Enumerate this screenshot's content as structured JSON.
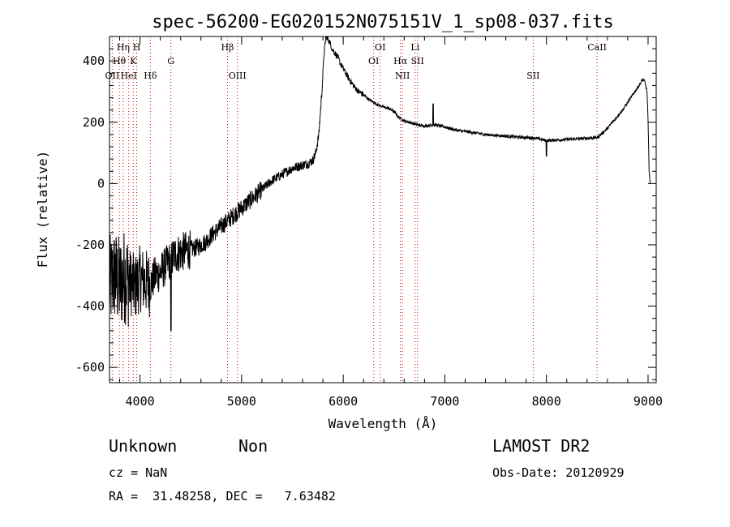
{
  "info": {
    "class": "Unknown",
    "subclass": "Non",
    "survey": "LAMOST DR2",
    "cz": "cz = NaN",
    "obs_date": "Obs-Date: 20120929",
    "radec": "RA =  31.48258, DEC =   7.63482"
  },
  "chart_data": {
    "type": "line",
    "title": "spec-56200-EG020152N075151V_1_sp08-037.fits",
    "xlabel": "Wavelength (Å)",
    "ylabel": "Flux (relative)",
    "xlim": [
      3700,
      9080
    ],
    "ylim": [
      -650,
      480
    ],
    "xticks": [
      4000,
      5000,
      6000,
      7000,
      8000,
      9000
    ],
    "yticks": [
      -600,
      -400,
      -200,
      0,
      200,
      400
    ],
    "grid": false,
    "line_color": "#000000",
    "marker_color": "#cc0000",
    "series": [
      {
        "x": [
          3700,
          3750,
          3800,
          3850,
          3900,
          3950,
          4000,
          4050,
          4100,
          4150,
          4200,
          4250,
          4300,
          4350,
          4400,
          4450,
          4500,
          4550,
          4600,
          4650,
          4700,
          4750,
          4800,
          4850,
          4900,
          4950,
          5000,
          5050,
          5100,
          5150,
          5200,
          5250,
          5300,
          5350,
          5400,
          5450,
          5500,
          5550,
          5600,
          5650,
          5700,
          5730,
          5760,
          5790,
          5810,
          5830,
          5850,
          5870,
          5890,
          5910,
          5930,
          5950,
          5975,
          6000,
          6050,
          6100,
          6150,
          6200,
          6250,
          6300,
          6350,
          6400,
          6450,
          6500,
          6550,
          6600,
          6650,
          6700,
          6750,
          6800,
          6850,
          6900,
          6950,
          7000,
          7100,
          7200,
          7300,
          7400,
          7500,
          7600,
          7700,
          7800,
          7900,
          8000,
          8100,
          8200,
          8300,
          8400,
          8500,
          8550,
          8600,
          8650,
          8700,
          8750,
          8800,
          8850,
          8900,
          8950,
          8970,
          8990,
          9000,
          9010,
          9020
        ],
        "y": [
          -330,
          -300,
          -330,
          -300,
          -320,
          -340,
          -310,
          -320,
          -330,
          -300,
          -290,
          -270,
          -250,
          -230,
          -225,
          -220,
          -215,
          -210,
          -200,
          -190,
          -170,
          -155,
          -140,
          -125,
          -110,
          -95,
          -80,
          -65,
          -50,
          -35,
          -20,
          -5,
          10,
          20,
          30,
          40,
          50,
          55,
          60,
          65,
          75,
          100,
          160,
          300,
          420,
          480,
          470,
          460,
          440,
          430,
          420,
          410,
          390,
          375,
          345,
          320,
          300,
          290,
          275,
          265,
          255,
          250,
          245,
          235,
          215,
          205,
          200,
          195,
          190,
          188,
          190,
          192,
          188,
          185,
          175,
          170,
          165,
          160,
          157,
          155,
          152,
          150,
          148,
          140,
          142,
          144,
          146,
          148,
          150,
          165,
          180,
          200,
          220,
          240,
          265,
          290,
          315,
          340,
          330,
          300,
          200,
          50,
          0
        ]
      }
    ],
    "lines": [
      {
        "name": "Hη",
        "x": 3835,
        "row": 1
      },
      {
        "name": "Hθ",
        "x": 3797,
        "row": 2
      },
      {
        "name": "OII",
        "x": 3727,
        "row": 3
      },
      {
        "name": "HeI",
        "x": 3889,
        "row": 3
      },
      {
        "name": "H",
        "x": 3968,
        "row": 1
      },
      {
        "name": "K",
        "x": 3934,
        "row": 2
      },
      {
        "name": "Hδ",
        "x": 4102,
        "row": 3
      },
      {
        "name": "G",
        "x": 4304,
        "row": 2
      },
      {
        "name": "Hβ",
        "x": 4861,
        "row": 1
      },
      {
        "name": "OIII",
        "x": 4959,
        "row": 3
      },
      {
        "name": "OI",
        "x": 6364,
        "row": 1
      },
      {
        "name": "OI",
        "x": 6300,
        "row": 2
      },
      {
        "name": "Hα",
        "x": 6563,
        "row": 2
      },
      {
        "name": "NII",
        "x": 6583,
        "row": 3
      },
      {
        "name": "Li",
        "x": 6708,
        "row": 1
      },
      {
        "name": "SII",
        "x": 6731,
        "row": 2
      },
      {
        "name": "SII",
        "x": 7870,
        "row": 3
      },
      {
        "name": "CaII",
        "x": 8498,
        "row": 1
      }
    ]
  }
}
